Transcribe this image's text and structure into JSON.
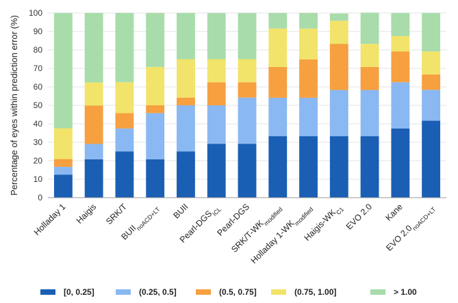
{
  "chart_data": {
    "type": "bar",
    "stacked": true,
    "ylabel": "Percentage of eyes within prediction error (%)",
    "xlabel": "",
    "ylim": [
      0,
      100
    ],
    "yticks": [
      "0",
      "10",
      "20",
      "30",
      "40",
      "50",
      "60",
      "70",
      "80",
      "90",
      "100"
    ],
    "grid": true,
    "legend_position": "bottom",
    "categories": [
      {
        "main": "Holladay 1",
        "sub": ""
      },
      {
        "main": "Haigis",
        "sub": ""
      },
      {
        "main": "SRK/T",
        "sub": ""
      },
      {
        "main": "BUII",
        "sub": "noACD+LT"
      },
      {
        "main": "BUII",
        "sub": ""
      },
      {
        "main": "Pearl-DGS",
        "sub": "ICL"
      },
      {
        "main": "Pearl-DGS",
        "sub": ""
      },
      {
        "main": "SRK/T-WK",
        "sub": "modified"
      },
      {
        "main": "Holladay 1-WK",
        "sub": "modified"
      },
      {
        "main": "Haigis-WK",
        "sub": "C1"
      },
      {
        "main": "EVO 2.0",
        "sub": ""
      },
      {
        "main": "Kane",
        "sub": ""
      },
      {
        "main": "EVO 2.0",
        "sub": "noACD+LT"
      }
    ],
    "series": [
      {
        "name": "[0, 0.25]",
        "color": "#1a5fb4",
        "values": [
          12.5,
          20.8,
          25.0,
          20.8,
          25.0,
          29.2,
          29.2,
          33.3,
          33.3,
          33.3,
          33.3,
          37.5,
          41.7
        ]
      },
      {
        "name": "(0.25, 0.5]",
        "color": "#8ab8f2",
        "values": [
          4.2,
          8.3,
          12.5,
          25.0,
          25.0,
          20.8,
          25.0,
          20.8,
          20.8,
          25.0,
          25.0,
          25.0,
          16.7
        ]
      },
      {
        "name": "(0.5, 0.75]",
        "color": "#f6a040",
        "values": [
          4.2,
          20.8,
          8.3,
          4.2,
          4.2,
          12.5,
          8.3,
          16.7,
          20.8,
          25.0,
          12.5,
          16.7,
          8.3
        ]
      },
      {
        "name": "(0.75, 1.00]",
        "color": "#f2e36a",
        "values": [
          16.7,
          12.5,
          16.7,
          20.8,
          20.8,
          12.5,
          12.5,
          20.8,
          16.7,
          12.5,
          12.5,
          8.3,
          12.5
        ]
      },
      {
        "name": "> 1.00",
        "color": "#a8dcaa",
        "values": [
          62.4,
          37.6,
          37.5,
          29.2,
          25.0,
          25.0,
          25.0,
          8.4,
          8.4,
          3.9,
          16.9,
          12.5,
          20.8
        ]
      }
    ]
  }
}
